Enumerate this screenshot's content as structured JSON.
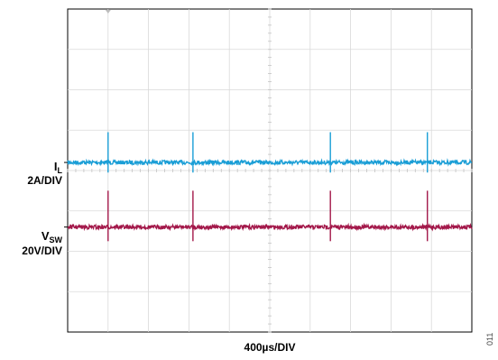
{
  "chart_data": {
    "type": "line",
    "x_divisions": 10,
    "y_divisions": 8,
    "grid": true,
    "xlabel": "400µs/DIV",
    "x": [
      0,
      1.0,
      3.1,
      6.5,
      8.9
    ],
    "series": [
      {
        "label": "I",
        "subscript": "L",
        "scale": "2A/DIV",
        "color": "#1a9ed6",
        "baseline_div": 4.2,
        "spike_times_div": [
          1.0,
          3.1,
          6.5,
          8.9
        ],
        "spike_up_div": 0.75,
        "spike_down_div": 0.25
      },
      {
        "label": "V",
        "subscript": "SW",
        "scale": "20V/DIV",
        "color": "#a3184a",
        "baseline_div": 2.6,
        "spike_times_div": [
          1.0,
          3.1,
          6.5,
          8.9
        ],
        "spike_up_div": 0.9,
        "spike_down_div": 0.35
      }
    ]
  },
  "figure_id": "011"
}
